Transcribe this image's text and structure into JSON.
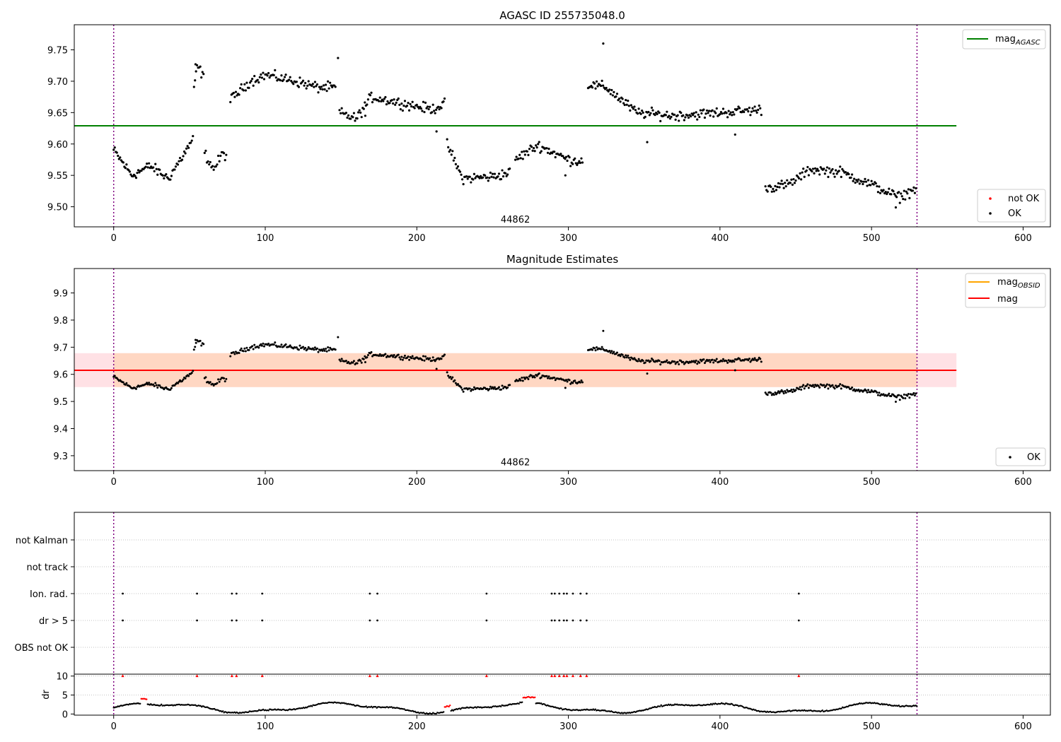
{
  "chart_data": [
    {
      "type": "scatter",
      "title": "AGASC ID 255735048.0",
      "xlim": [
        -26,
        618
      ],
      "ylim": [
        9.468,
        9.79
      ],
      "xticks": [
        0,
        100,
        200,
        300,
        400,
        500,
        600
      ],
      "yticks": [
        9.5,
        9.55,
        9.6,
        9.65,
        9.7,
        9.75
      ],
      "hline": {
        "name": "mag_AGASC",
        "value": 9.629,
        "color": "#008000",
        "x_range": [
          -26,
          556
        ]
      },
      "vlines": {
        "values": [
          0,
          530
        ],
        "color": "#800080"
      },
      "annotation": {
        "text": "44862",
        "x": 265,
        "y": 9.479
      },
      "legend_upper": [
        {
          "label": "mag",
          "sub": "AGASC",
          "color": "#008000"
        }
      ],
      "legend_lower": [
        {
          "label": "not OK",
          "color": "#ff0000"
        },
        {
          "label": "OK",
          "color": "#000000"
        }
      ],
      "series": [
        {
          "name": "OK",
          "color": "#000000",
          "segments": [
            {
              "points": [
                [
                  0,
                  9.59
                ],
                [
                  12,
                  9.55
                ],
                [
                  24,
                  9.565
                ],
                [
                  36,
                  9.545
                ],
                [
                  48,
                  9.59
                ],
                [
                  53,
                  9.612
                ]
              ]
            },
            {
              "points": [
                [
                  53,
                  9.685
                ],
                [
                  55,
                  9.725
                ],
                [
                  60,
                  9.705
                ]
              ]
            },
            {
              "points": [
                [
                  60,
                  9.585
                ],
                [
                  66,
                  9.56
                ],
                [
                  72,
                  9.585
                ],
                [
                  75,
                  9.58
                ]
              ]
            },
            {
              "points": [
                [
                  77,
                  9.67
                ],
                [
                  90,
                  9.7
                ],
                [
                  100,
                  9.71
                ],
                [
                  120,
                  9.7
                ],
                [
                  135,
                  9.69
                ],
                [
                  147,
                  9.69
                ]
              ]
            },
            {
              "points": [
                [
                  149,
                  9.65
                ],
                [
                  160,
                  9.64
                ],
                [
                  170,
                  9.675
                ],
                [
                  190,
                  9.665
                ],
                [
                  210,
                  9.655
                ],
                [
                  219,
                  9.665
                ]
              ]
            },
            {
              "points": [
                [
                  220,
                  9.6
                ],
                [
                  230,
                  9.545
                ],
                [
                  250,
                  9.548
                ],
                [
                  262,
                  9.555
                ]
              ]
            },
            {
              "points": [
                [
                  265,
                  9.575
                ],
                [
                  280,
                  9.598
                ],
                [
                  300,
                  9.575
                ],
                [
                  310,
                  9.572
                ]
              ]
            },
            {
              "points": [
                [
                  313,
                  9.695
                ],
                [
                  325,
                  9.69
                ],
                [
                  345,
                  9.65
                ],
                [
                  370,
                  9.645
                ],
                [
                  400,
                  9.65
                ],
                [
                  428,
                  9.655
                ]
              ]
            },
            {
              "points": [
                [
                  430,
                  9.53
                ],
                [
                  445,
                  9.535
                ],
                [
                  460,
                  9.56
                ],
                [
                  480,
                  9.555
                ],
                [
                  500,
                  9.535
                ],
                [
                  518,
                  9.515
                ],
                [
                  530,
                  9.53
                ]
              ]
            }
          ],
          "extra_points": [
            [
              54,
              9.727
            ],
            [
              148,
              9.737
            ],
            [
              323,
              9.76
            ],
            [
              352,
              9.603
            ],
            [
              410,
              9.615
            ],
            [
              298,
              9.55
            ],
            [
              213,
              9.62
            ],
            [
              166,
              9.645
            ],
            [
              516,
              9.499
            ]
          ]
        },
        {
          "name": "not OK",
          "color": "#ff0000",
          "values": []
        }
      ]
    },
    {
      "type": "scatter",
      "title": "Magnitude Estimates",
      "xlim": [
        -26,
        618
      ],
      "ylim": [
        9.245,
        9.99
      ],
      "xticks": [
        0,
        100,
        200,
        300,
        400,
        500,
        600
      ],
      "yticks": [
        9.3,
        9.4,
        9.5,
        9.6,
        9.7,
        9.8,
        9.9
      ],
      "annotation": {
        "text": "44862",
        "x": 265,
        "y": 9.275
      },
      "vlines": {
        "values": [
          0,
          530
        ],
        "color": "#800080"
      },
      "mag_line": {
        "name": "mag",
        "value": 9.615,
        "color": "#ff0000",
        "x_range": [
          -26,
          556
        ],
        "band": [
          9.553,
          9.678
        ],
        "band_color": "#ff9aa8"
      },
      "mag_obsid": {
        "name": "mag_OBSID",
        "value": 9.615,
        "color": "#ffa500",
        "x_range": [
          0,
          530
        ],
        "band": [
          9.553,
          9.678
        ],
        "band_color": "#ffcc99"
      },
      "legend_upper": [
        {
          "label": "mag",
          "sub": "OBSID",
          "color": "#ffa500"
        },
        {
          "label": "mag",
          "sub": "",
          "color": "#ff0000"
        }
      ],
      "legend_lower": [
        {
          "label": "OK",
          "color": "#000000"
        }
      ]
    },
    {
      "type": "scatter",
      "title": "",
      "xlim": [
        -26,
        618
      ],
      "categories": [
        "not Kalman",
        "not track",
        "Ion. rad.",
        "dr > 5",
        "OBS not OK"
      ],
      "flag_times": [
        6,
        55,
        78,
        81,
        98,
        169,
        174,
        246,
        289,
        291,
        294,
        297,
        299,
        303,
        308,
        312,
        452
      ],
      "vlines": {
        "values": [
          0,
          530
        ],
        "color": "#800080"
      },
      "dr_panel": {
        "ylabel": "dr",
        "ylim": [
          -0.3,
          10.5
        ],
        "yticks": [
          0,
          5,
          10
        ],
        "xticks": [
          0,
          100,
          200,
          300,
          400,
          500,
          600
        ],
        "red_marker_value": 10,
        "threshold": 5
      }
    }
  ]
}
